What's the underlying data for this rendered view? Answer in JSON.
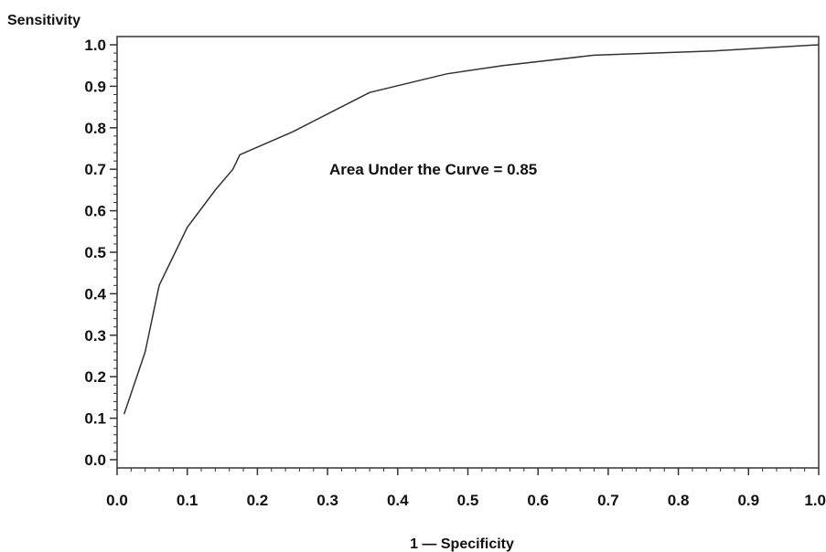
{
  "chart_data": {
    "type": "line",
    "xlabel": "1 — Specificity",
    "ylabel": "Sensitivity",
    "xlim": [
      0,
      1
    ],
    "ylim": [
      0,
      1
    ],
    "x_ticks": [
      "0.0",
      "0.1",
      "0.2",
      "0.3",
      "0.4",
      "0.5",
      "0.6",
      "0.7",
      "0.8",
      "0.9",
      "1.0"
    ],
    "y_ticks": [
      "0.0",
      "0.1",
      "0.2",
      "0.3",
      "0.4",
      "0.5",
      "0.6",
      "0.7",
      "0.8",
      "0.9",
      "1.0"
    ],
    "annotation": "Area Under the Curve =  0.85",
    "grid": false,
    "line_color": "#333333",
    "series": [
      {
        "x": [
          0.01,
          0.04,
          0.06,
          0.08,
          0.1,
          0.14,
          0.165,
          0.175,
          0.25,
          0.36,
          0.47,
          0.55,
          0.68,
          0.85,
          1.0
        ],
        "y": [
          0.11,
          0.26,
          0.42,
          0.49,
          0.56,
          0.65,
          0.7,
          0.735,
          0.79,
          0.885,
          0.93,
          0.95,
          0.975,
          0.985,
          1.0
        ]
      }
    ]
  }
}
